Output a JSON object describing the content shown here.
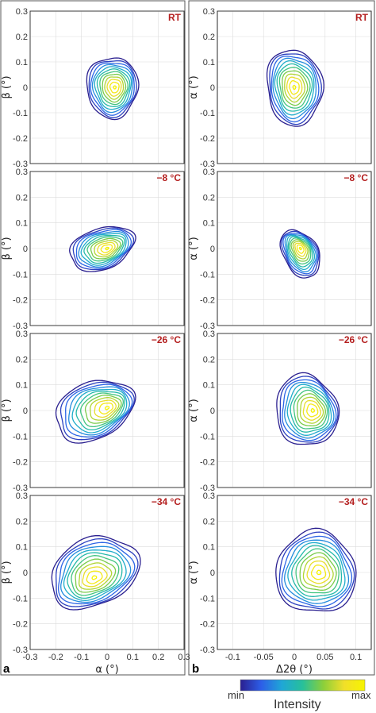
{
  "chart_data": {
    "type": "contour",
    "panel_labels": [
      "a",
      "b"
    ],
    "columns": [
      {
        "panel": "a",
        "xlabel": "α (°)",
        "ylabel": "β (°)",
        "xlim": [
          -0.3,
          0.3
        ],
        "ylim": [
          -0.3,
          0.3
        ],
        "xticks": [
          "-0.3",
          "-0.2",
          "-0.1",
          "0",
          "0.1",
          "0.2",
          "0.3"
        ],
        "yticks": [
          "0.3",
          "0.2",
          "0.1",
          "0",
          "-0.1",
          "-0.2",
          "-0.3"
        ],
        "rows": [
          {
            "temperature": "RT",
            "center": [
              0.02,
              0.0
            ],
            "peak": [
              0.03,
              0.0
            ],
            "spread": [
              0.1,
              0.12
            ],
            "tilt": 0
          },
          {
            "temperature": "−8 °C",
            "center": [
              -0.02,
              0.0
            ],
            "peak": [
              0.0,
              0.0
            ],
            "spread": [
              0.13,
              0.08
            ],
            "tilt": 20
          },
          {
            "temperature": "−26 °C",
            "center": [
              -0.05,
              0.0
            ],
            "peak": [
              0.0,
              0.01
            ],
            "spread": [
              0.16,
              0.11
            ],
            "tilt": 25
          },
          {
            "temperature": "−34 °C",
            "center": [
              -0.05,
              0.0
            ],
            "peak": [
              -0.05,
              -0.02
            ],
            "spread": [
              0.18,
              0.13
            ],
            "tilt": 25
          }
        ]
      },
      {
        "panel": "b",
        "xlabel": "Δ2θ (°)",
        "ylabel": "α (°)",
        "xlim": [
          -0.125,
          0.125
        ],
        "ylim": [
          -0.3,
          0.3
        ],
        "xticks": [
          "-0.1",
          "-0.05",
          "0",
          "0.05",
          "0.1"
        ],
        "yticks": [
          "0.3",
          "0.2",
          "0.1",
          "0",
          "-0.1",
          "-0.2",
          "-0.3"
        ],
        "rows": [
          {
            "temperature": "RT",
            "center": [
              0.0,
              0.0
            ],
            "peak": [
              0.0,
              0.0
            ],
            "spread": [
              0.045,
              0.15
            ],
            "tilt": 5
          },
          {
            "temperature": "−8 °C",
            "center": [
              0.01,
              -0.02
            ],
            "peak": [
              0.01,
              0.0
            ],
            "spread": [
              0.028,
              0.1
            ],
            "tilt": 30
          },
          {
            "temperature": "−26 °C",
            "center": [
              0.02,
              0.0
            ],
            "peak": [
              0.03,
              0.0
            ],
            "spread": [
              0.05,
              0.14
            ],
            "tilt": 15
          },
          {
            "temperature": "−34 °C",
            "center": [
              0.035,
              0.0
            ],
            "peak": [
              0.04,
              0.0
            ],
            "spread": [
              0.065,
              0.16
            ],
            "tilt": 15
          }
        ]
      }
    ],
    "colorbar": {
      "title": "Intensity",
      "min_label": "min",
      "max_label": "max",
      "colormap": [
        "#2a1f8f",
        "#2d5ee8",
        "#1fa7d6",
        "#27c09a",
        "#8ccf3a",
        "#f1df2a",
        "#f7f400"
      ]
    },
    "contour_levels": 12,
    "grid": true
  }
}
